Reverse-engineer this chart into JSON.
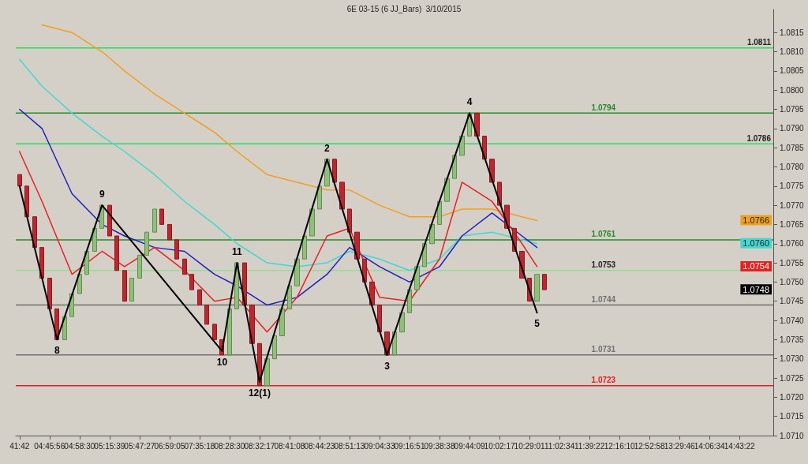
{
  "chart_data": {
    "type": "candlestick",
    "title": "6E 03-15 (6 JJ_Bars)  3/10/2015",
    "categories": [
      "41:42",
      null,
      null,
      null,
      "04:45:56",
      null,
      null,
      null,
      "04:58:30",
      null,
      null,
      null,
      "05:15:39",
      null,
      null,
      null,
      "05:47:27",
      null,
      null,
      null,
      "06:59:05",
      null,
      null,
      null,
      "07:35:18",
      null,
      null,
      null,
      "08:28:30",
      null,
      null,
      null,
      "08:32:17",
      null,
      null,
      null,
      "08:41:08",
      null,
      null,
      null,
      "08:44:23",
      null,
      null,
      null,
      "08:51:13",
      null,
      null,
      null,
      "09:04:33",
      null,
      null,
      null,
      "09:16:51",
      null,
      null,
      null,
      "09:38:38",
      null,
      null,
      null,
      "09:44:09",
      null,
      null,
      null,
      "10:02:17",
      null,
      null,
      null,
      "10:29:01",
      null,
      null,
      null,
      "11:02:34",
      null,
      null,
      null,
      "11:39:22",
      null,
      null,
      null,
      "12:16:10",
      null,
      null,
      null,
      "12:52:58",
      null,
      null,
      null,
      "13:29:46",
      null,
      null,
      null,
      "14:06:34",
      null,
      null,
      null,
      "14:43:22",
      null,
      null,
      null,
      null
    ],
    "ohlc": [
      [
        1.0778,
        1.0778,
        1.0775,
        1.0775
      ],
      [
        1.0775,
        1.0775,
        1.0767,
        1.0767
      ],
      [
        1.0767,
        1.0767,
        1.0759,
        1.0759
      ],
      [
        1.0759,
        1.0759,
        1.0751,
        1.0751
      ],
      [
        1.0751,
        1.0751,
        1.0743,
        1.0743
      ],
      [
        1.0743,
        1.0743,
        1.0735,
        1.0735
      ],
      [
        1.0735,
        1.0741,
        1.0735,
        1.0741
      ],
      [
        1.0741,
        1.0747,
        1.0741,
        1.0747
      ],
      [
        1.0747,
        1.0752,
        1.0747,
        1.0752
      ],
      [
        1.0752,
        1.0758,
        1.0752,
        1.0758
      ],
      [
        1.0758,
        1.0764,
        1.0758,
        1.0764
      ],
      [
        1.0764,
        1.077,
        1.0764,
        1.077
      ],
      [
        1.077,
        1.077,
        1.0762,
        1.0762
      ],
      [
        1.0762,
        1.0762,
        1.0753,
        1.0753
      ],
      [
        1.0753,
        1.0753,
        1.0745,
        1.0745
      ],
      [
        1.0745,
        1.0751,
        1.0745,
        1.0751
      ],
      [
        1.0751,
        1.0757,
        1.0751,
        1.0757
      ],
      [
        1.0757,
        1.0763,
        1.0757,
        1.0763
      ],
      [
        1.0763,
        1.0769,
        1.0763,
        1.0769
      ],
      [
        1.0769,
        1.0769,
        1.0765,
        1.0765
      ],
      [
        1.0765,
        1.0765,
        1.0761,
        1.0761
      ],
      [
        1.0761,
        1.0761,
        1.0756,
        1.0756
      ],
      [
        1.0756,
        1.0756,
        1.0752,
        1.0752
      ],
      [
        1.0752,
        1.0752,
        1.0748,
        1.0748
      ],
      [
        1.0748,
        1.0748,
        1.0744,
        1.0744
      ],
      [
        1.0744,
        1.0744,
        1.0739,
        1.0739
      ],
      [
        1.0739,
        1.0739,
        1.0735,
        1.0735
      ],
      [
        1.0735,
        1.0735,
        1.0731,
        1.0731
      ],
      [
        1.0731,
        1.0743,
        1.0731,
        1.0743
      ],
      [
        1.0743,
        1.0755,
        1.0743,
        1.0755
      ],
      [
        1.0755,
        1.0755,
        1.0744,
        1.0744
      ],
      [
        1.0744,
        1.0744,
        1.0734,
        1.0734
      ],
      [
        1.0734,
        1.0734,
        1.0723,
        1.0723
      ],
      [
        1.0723,
        1.073,
        1.0723,
        1.073
      ],
      [
        1.073,
        1.0736,
        1.073,
        1.0736
      ],
      [
        1.0736,
        1.0743,
        1.0736,
        1.0743
      ],
      [
        1.0743,
        1.0749,
        1.0743,
        1.0749
      ],
      [
        1.0749,
        1.0756,
        1.0749,
        1.0756
      ],
      [
        1.0756,
        1.0762,
        1.0756,
        1.0762
      ],
      [
        1.0762,
        1.0769,
        1.0762,
        1.0769
      ],
      [
        1.0769,
        1.0775,
        1.0769,
        1.0775
      ],
      [
        1.0775,
        1.0782,
        1.0775,
        1.0782
      ],
      [
        1.0782,
        1.0782,
        1.0776,
        1.0776
      ],
      [
        1.0776,
        1.0776,
        1.0769,
        1.0769
      ],
      [
        1.0769,
        1.0769,
        1.0763,
        1.0763
      ],
      [
        1.0763,
        1.0763,
        1.0756,
        1.0756
      ],
      [
        1.0756,
        1.0756,
        1.075,
        1.075
      ],
      [
        1.075,
        1.075,
        1.0744,
        1.0744
      ],
      [
        1.0744,
        1.0744,
        1.0737,
        1.0737
      ],
      [
        1.0737,
        1.0737,
        1.0731,
        1.0731
      ],
      [
        1.0731,
        1.0737,
        1.0731,
        1.0737
      ],
      [
        1.0737,
        1.0742,
        1.0737,
        1.0742
      ],
      [
        1.0742,
        1.0748,
        1.0742,
        1.0748
      ],
      [
        1.0748,
        1.0754,
        1.0748,
        1.0754
      ],
      [
        1.0754,
        1.076,
        1.0754,
        1.076
      ],
      [
        1.076,
        1.0765,
        1.076,
        1.0765
      ],
      [
        1.0765,
        1.0771,
        1.0765,
        1.0771
      ],
      [
        1.0771,
        1.0777,
        1.0771,
        1.0777
      ],
      [
        1.0777,
        1.0783,
        1.0777,
        1.0783
      ],
      [
        1.0783,
        1.0788,
        1.0783,
        1.0788
      ],
      [
        1.0788,
        1.0794,
        1.0788,
        1.0794
      ],
      [
        1.0794,
        1.0794,
        1.0788,
        1.0788
      ],
      [
        1.0788,
        1.0788,
        1.0782,
        1.0782
      ],
      [
        1.0782,
        1.0782,
        1.0776,
        1.0776
      ],
      [
        1.0776,
        1.0776,
        1.077,
        1.077
      ],
      [
        1.077,
        1.077,
        1.0764,
        1.0764
      ],
      [
        1.0764,
        1.0764,
        1.0758,
        1.0758
      ],
      [
        1.0758,
        1.0758,
        1.0751,
        1.0751
      ],
      [
        1.0751,
        1.0751,
        1.0745,
        1.0745
      ],
      [
        1.0745,
        1.0752,
        1.0745,
        1.0752
      ],
      [
        1.0752,
        1.0752,
        1.0748,
        1.0748
      ],
      null,
      null,
      null,
      null,
      null,
      null,
      null,
      null,
      null,
      null,
      null,
      null,
      null,
      null,
      null,
      null,
      null,
      null,
      null,
      null,
      null,
      null,
      null,
      null,
      null,
      null,
      null,
      null,
      null,
      null
    ],
    "series": [
      {
        "type": "line",
        "color": "#f0a020",
        "values": [
          null,
          null,
          null,
          1.0817,
          null,
          null,
          null,
          1.0815,
          null,
          null,
          null,
          1.081,
          null,
          null,
          1.0805,
          null,
          null,
          null,
          1.0799,
          null,
          null,
          null,
          1.0794,
          null,
          null,
          null,
          1.0789,
          null,
          null,
          1.0784,
          null,
          null,
          null,
          1.0778,
          null,
          null,
          null,
          1.0776,
          null,
          null,
          null,
          1.0774,
          null,
          null,
          1.0774,
          null,
          null,
          null,
          1.077,
          null,
          null,
          null,
          1.0767,
          null,
          null,
          null,
          1.0767,
          null,
          null,
          1.0769,
          null,
          null,
          null,
          1.0769,
          null,
          null,
          null,
          1.0767,
          null,
          1.0766,
          null,
          null,
          null,
          null,
          null,
          null,
          null,
          null,
          null,
          null,
          null,
          null,
          null,
          null,
          null,
          null,
          null,
          null,
          null,
          null,
          null,
          null,
          null,
          null,
          null,
          null,
          null,
          null,
          null,
          null,
          null
        ]
      },
      {
        "type": "line",
        "color": "#40d8d0",
        "values": [
          1.0808,
          null,
          null,
          1.0801,
          null,
          null,
          null,
          1.0794,
          null,
          null,
          null,
          1.0788,
          null,
          null,
          1.0784,
          null,
          null,
          null,
          1.0778,
          null,
          null,
          null,
          1.0771,
          null,
          null,
          null,
          1.0765,
          null,
          null,
          1.076,
          null,
          null,
          null,
          1.0755,
          null,
          null,
          null,
          1.0754,
          null,
          null,
          null,
          1.0755,
          null,
          null,
          1.0758,
          null,
          null,
          null,
          1.0756,
          null,
          null,
          null,
          1.0753,
          null,
          null,
          null,
          1.0756,
          null,
          null,
          1.0762,
          null,
          null,
          null,
          1.0763,
          null,
          null,
          null,
          1.0761,
          null,
          1.076,
          null,
          null,
          null,
          null,
          null,
          null,
          null,
          null,
          null,
          null,
          null,
          null,
          null,
          null,
          null,
          null,
          null,
          null,
          null,
          null,
          null,
          null,
          null,
          null,
          null,
          null,
          null,
          null,
          null,
          null,
          null
        ]
      },
      {
        "type": "line",
        "color": "#2020c0",
        "values": [
          1.0795,
          null,
          null,
          1.079,
          null,
          null,
          null,
          1.0773,
          null,
          null,
          null,
          1.0765,
          null,
          null,
          1.0762,
          null,
          null,
          null,
          1.0759,
          null,
          null,
          null,
          1.0758,
          null,
          null,
          null,
          1.0752,
          null,
          null,
          1.0749,
          null,
          null,
          null,
          1.0744,
          null,
          null,
          null,
          1.0746,
          null,
          null,
          null,
          1.0752,
          null,
          null,
          1.0759,
          null,
          null,
          null,
          1.0754,
          null,
          null,
          null,
          1.075,
          null,
          null,
          null,
          1.0754,
          null,
          null,
          1.0762,
          null,
          null,
          null,
          1.0768,
          null,
          null,
          null,
          1.0762,
          null,
          1.0759,
          null,
          null,
          null,
          null,
          null,
          null,
          null,
          null,
          null,
          null,
          null,
          null,
          null,
          null,
          null,
          null,
          null,
          null,
          null,
          null,
          null,
          null,
          null,
          null,
          null,
          null,
          null,
          null,
          null,
          null,
          null
        ]
      },
      {
        "type": "line",
        "color": "#e82020",
        "values": [
          1.0784,
          null,
          null,
          1.0771,
          null,
          null,
          null,
          1.0752,
          null,
          null,
          null,
          1.0758,
          null,
          null,
          1.0754,
          null,
          null,
          null,
          1.0759,
          null,
          null,
          null,
          1.0753,
          null,
          null,
          null,
          1.0745,
          null,
          null,
          1.0746,
          null,
          null,
          null,
          1.0737,
          null,
          null,
          null,
          1.0746,
          null,
          null,
          null,
          1.0762,
          null,
          null,
          1.0764,
          null,
          null,
          null,
          1.0746,
          null,
          null,
          null,
          1.0745,
          null,
          null,
          null,
          1.0756,
          null,
          null,
          1.0776,
          null,
          null,
          null,
          1.0771,
          null,
          null,
          null,
          1.076,
          null,
          1.0754,
          null,
          null,
          null,
          null,
          null,
          null,
          null,
          null,
          null,
          null,
          null,
          null,
          null,
          null,
          null,
          null,
          null,
          null,
          null,
          null,
          null,
          null,
          null,
          null,
          null,
          null,
          null,
          null,
          null,
          null,
          null
        ]
      },
      {
        "type": "line",
        "color": "#000000",
        "values": [
          1.0775,
          null,
          null,
          null,
          null,
          1.0735,
          null,
          null,
          null,
          null,
          null,
          1.077,
          null,
          null,
          null,
          null,
          null,
          null,
          null,
          null,
          null,
          null,
          null,
          null,
          null,
          null,
          null,
          1.0732,
          null,
          1.0755,
          null,
          null,
          1.0724,
          null,
          null,
          null,
          null,
          null,
          null,
          null,
          null,
          1.0782,
          null,
          null,
          null,
          null,
          null,
          null,
          null,
          1.0731,
          null,
          null,
          null,
          null,
          null,
          null,
          null,
          null,
          null,
          null,
          1.0794,
          null,
          null,
          null,
          null,
          null,
          null,
          null,
          null,
          1.0742,
          null,
          null,
          null,
          null,
          null,
          null,
          null,
          null,
          null,
          null,
          null,
          null,
          null,
          null,
          null,
          null,
          null,
          null,
          null,
          null,
          null,
          null,
          null,
          null,
          null,
          null,
          null,
          null,
          null,
          null,
          null
        ]
      }
    ],
    "ref_lines": [
      {
        "axis": "y",
        "value": 1.0811,
        "label": "1.0811",
        "color": "#20e060"
      },
      {
        "axis": "y",
        "value": 1.0794,
        "label": "1.0794",
        "color": "#2a8a2a"
      },
      {
        "axis": "y",
        "value": 1.0786,
        "label": "1.0786",
        "color": "#20e060"
      },
      {
        "axis": "y",
        "value": 1.0761,
        "label": "1.0761",
        "color": "#2a8a2a"
      },
      {
        "axis": "y",
        "value": 1.0753,
        "label": "1.0753",
        "color": "#90e090"
      },
      {
        "axis": "y",
        "value": 1.0744,
        "label": "1.0744",
        "color": "#707070"
      },
      {
        "axis": "y",
        "value": 1.0731,
        "label": "1.0731",
        "color": "#707070"
      },
      {
        "axis": "y",
        "value": 1.0723,
        "label": "1.0723",
        "color": "#e02020"
      }
    ],
    "annotations": [
      {
        "text": "8",
        "y": 1.0735
      },
      {
        "text": "9",
        "y": 1.077
      },
      {
        "text": "10",
        "y": 1.0732
      },
      {
        "text": "11",
        "y": 1.0755
      },
      {
        "text": "12(1)",
        "y": 1.0724
      },
      {
        "text": "2",
        "y": 1.0782
      },
      {
        "text": "3",
        "y": 1.0731
      },
      {
        "text": "4",
        "y": 1.0794
      },
      {
        "text": "5",
        "y": 1.0742
      },
      {
        "text": "1.0766",
        "y": 1.0766
      },
      {
        "text": "1.0760",
        "y": 1.076
      },
      {
        "text": "1.0754",
        "y": 1.0754
      },
      {
        "text": "1.0748",
        "y": 1.0748
      }
    ],
    "ylim": [
      1.071,
      1.0821
    ],
    "yticks": [
      {
        "value": 1.071,
        "label": "1.0710"
      },
      {
        "value": 1.0715,
        "label": "1.0715"
      },
      {
        "value": 1.072,
        "label": "1.0720"
      },
      {
        "value": 1.0725,
        "label": "1.0725"
      },
      {
        "value": 1.073,
        "label": "1.0730"
      },
      {
        "value": 1.0735,
        "label": "1.0735"
      },
      {
        "value": 1.074,
        "label": "1.0740"
      },
      {
        "value": 1.0745,
        "label": "1.0745"
      },
      {
        "value": 1.075,
        "label": "1.0750"
      },
      {
        "value": 1.0755,
        "label": "1.0755"
      },
      {
        "value": 1.076,
        "label": "1.0760"
      },
      {
        "value": 1.0765,
        "label": "1.0765"
      },
      {
        "value": 1.077,
        "label": "1.0770"
      },
      {
        "value": 1.0775,
        "label": "1.0775"
      },
      {
        "value": 1.078,
        "label": "1.0780"
      },
      {
        "value": 1.0785,
        "label": "1.0785"
      },
      {
        "value": 1.079,
        "label": "1.0790"
      },
      {
        "value": 1.0795,
        "label": "1.0795"
      },
      {
        "value": 1.08,
        "label": "1.0800"
      },
      {
        "value": 1.0805,
        "label": "1.0805"
      },
      {
        "value": 1.081,
        "label": "1.0810"
      },
      {
        "value": 1.0815,
        "label": "1.0815"
      }
    ],
    "marker": "none",
    "grid": false
  }
}
